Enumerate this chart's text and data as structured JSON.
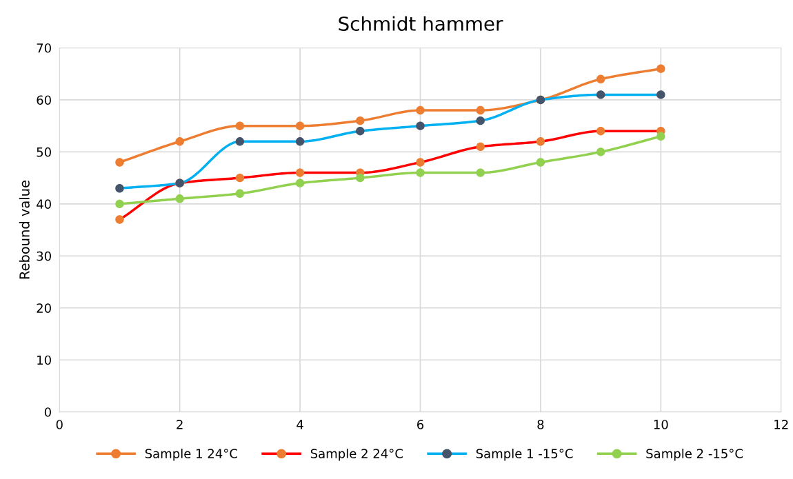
{
  "chart_data": {
    "type": "line",
    "title": "Schmidt hammer",
    "ylabel": "Rebound value",
    "x": [
      1,
      2,
      3,
      4,
      5,
      6,
      7,
      8,
      9,
      10
    ],
    "series": [
      {
        "name": "Sample 1 24°C",
        "color": "#ed7d31",
        "values": [
          48,
          52,
          55,
          55,
          56,
          58,
          58,
          60,
          64,
          66
        ]
      },
      {
        "name": "Sample 2 24°C",
        "color": "#ff0000",
        "colors": [
          "#ed7d31",
          "#ed7d31",
          "#ed7d31",
          "#ed7d31",
          "#ed7d31",
          "#ed7d31",
          "#ed7d31",
          "#ed7d31",
          "#ed7d31",
          "#ed7d31"
        ],
        "values": [
          37,
          44,
          45,
          46,
          46,
          48,
          51,
          52,
          54,
          54
        ]
      },
      {
        "name": "Sample 1 -15°C",
        "color": "#00b0f0",
        "colors": [
          "#44546a",
          "#44546a",
          "#44546a",
          "#44546a",
          "#44546a",
          "#44546a",
          "#44546a",
          "#44546a",
          "#44546a",
          "#44546a"
        ],
        "values": [
          43,
          44,
          52,
          52,
          54,
          55,
          56,
          60,
          61,
          61
        ]
      },
      {
        "name": "Sample 2 -15°C",
        "color": "#92d050",
        "values": [
          40,
          41,
          42,
          44,
          45,
          46,
          46,
          48,
          50,
          53
        ]
      }
    ],
    "xlim": [
      0,
      12
    ],
    "xticks": [
      0,
      2,
      4,
      6,
      8,
      10,
      12
    ],
    "ylim": [
      0,
      70
    ],
    "yticks": [
      0,
      10,
      20,
      30,
      40,
      50,
      60,
      70
    ],
    "grid": true,
    "legend": "bottom",
    "marker": "circle",
    "line_style": "solid"
  }
}
